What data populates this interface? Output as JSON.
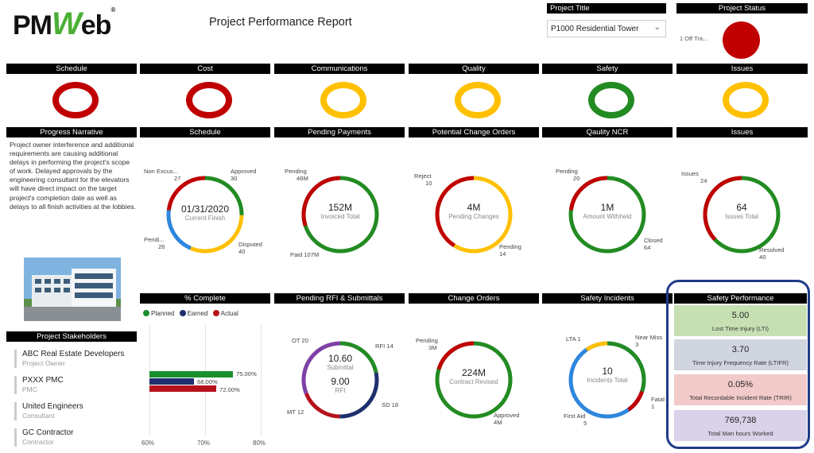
{
  "header": {
    "logo": {
      "pm": "PM",
      "w": "W",
      "eb": "eb",
      "reg": "®"
    },
    "title": "Project Performance Report",
    "project_title_label": "Project Title",
    "project_selected": "P1000 Residential Tower",
    "project_status_label": "Project Status",
    "project_status_item": "1 Off Tra...",
    "project_status_color": "#c00000"
  },
  "kpi_headers": [
    "Schedule",
    "Cost",
    "Communications",
    "Quality",
    "Safety",
    "Issues"
  ],
  "kpi_colors": [
    "#c00000",
    "#c00000",
    "#ffc000",
    "#ffc000",
    "#228b22",
    "#ffc000"
  ],
  "panel_headers": {
    "narrative": "Progress Narrative",
    "schedule": "Schedule",
    "payments": "Pending Payments",
    "change_orders_potential": "Potential Change Orders",
    "ncr": "Qaulity NCR",
    "issues": "Issues",
    "complete": "% Complete",
    "rfi": "Pending RFI & Submittals",
    "change_orders": "Change Orders",
    "safety_incidents": "Safety Incidents",
    "safety_performance": "Safety Performance",
    "stakeholders": "Project Stakeholders"
  },
  "narrative": "Project owner interference and additional requirements are causing additional delays in performing the project's scope of work. Delayed approvals by the engineering consultant for the elevators will have direct impact on the target project's completion date as well as delays to all finish activities at the lobbies.",
  "donuts": {
    "schedule": {
      "value": "01/31/2020",
      "label": "Current Finish",
      "l1": "Non Excus...",
      "l1v": "27",
      "l2": "Approved",
      "l2v": "30",
      "l3": "Pendi...",
      "l3v": "26",
      "l4": "Disputed",
      "l4v": "40"
    },
    "payments": {
      "value": "152M",
      "label": "Invoiced Total",
      "l1": "Pending",
      "l1v": "46M",
      "l2": "Paid 107M"
    },
    "potential": {
      "value": "4M",
      "label": "Pending Changes",
      "l1": "Reject",
      "l1v": "10",
      "l2": "Pending",
      "l2v": "14"
    },
    "ncr": {
      "value": "1M",
      "label": "Amount Withheld",
      "l1": "Pending",
      "l1v": "20",
      "l2": "Closed",
      "l2v": "64"
    },
    "issues": {
      "value": "64",
      "label": "Issues Total",
      "l1": "Issues",
      "l1v": "24",
      "l2": "Resolved",
      "l2v": "40"
    },
    "rfi": {
      "value1": "10.60",
      "label1": "Submittal",
      "value2": "9.00",
      "label2": "RFI",
      "l1": "OT 20",
      "l2": "RFI 14",
      "l3": "MT 12",
      "l4": "SD 18"
    },
    "change_orders": {
      "value": "224M",
      "label": "Contract Revised",
      "l1": "Pending",
      "l1v": "3M",
      "l2": "Approved",
      "l2v": "4M"
    },
    "safety": {
      "value": "10",
      "label": "Incidents Total",
      "l1": "LTA 1",
      "l2": "Near Miss",
      "l2v": "3",
      "l3": "Fatal",
      "l3v": "1",
      "l4": "First Aid",
      "l4v": "5"
    }
  },
  "complete": {
    "legend": [
      "Planned",
      "Earned",
      "Actual"
    ],
    "legend_colors": [
      "#1a8f2e",
      "#1f2f6e",
      "#b5121b"
    ],
    "values": [
      75.0,
      68.0,
      72.0
    ],
    "value_labels": [
      "75.00%",
      "68.00%",
      "72.00%"
    ],
    "axis": [
      "60%",
      "70%",
      "80%"
    ],
    "xlim": [
      60,
      80
    ]
  },
  "stakeholders": [
    {
      "name": "ABC Real Estate Developers",
      "role": "Project Owner"
    },
    {
      "name": "PXXX PMC",
      "role": "PMC"
    },
    {
      "name": "United Engineers",
      "role": "Consultant"
    },
    {
      "name": "GC Contractor",
      "role": "Contractor"
    }
  ],
  "safety_performance": [
    {
      "value": "5.00",
      "label": "Lost Time Injury (LTI)",
      "color": "#c6e0b4"
    },
    {
      "value": "3.70",
      "label": "Time Injury Frequency Rate (LTIFR)",
      "color": "#d0d5e0"
    },
    {
      "value": "0.05%",
      "label": "Total Recordable Incident Rate (TRIR)",
      "color": "#f2caca"
    },
    {
      "value": "769,738",
      "label": "Total Man hours Worked",
      "color": "#d9d2e9"
    }
  ]
}
